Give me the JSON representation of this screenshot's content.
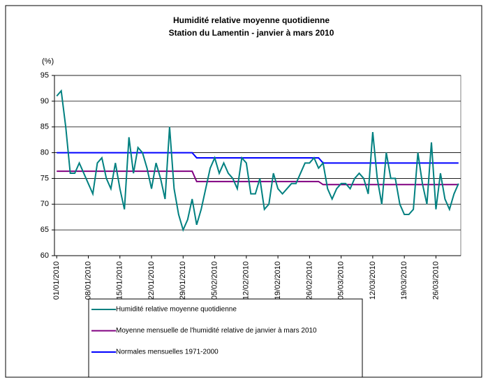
{
  "chart_data": {
    "type": "line",
    "title": "Humidité relative moyenne quotidienne",
    "subtitle": "Station du Lamentin - janvier à mars 2010",
    "y_label": "(%)",
    "ylim": [
      60,
      95
    ],
    "yticks": [
      60,
      65,
      70,
      75,
      80,
      85,
      90,
      95
    ],
    "grid": true,
    "categories": [
      "01/01/2010",
      null,
      null,
      null,
      null,
      null,
      null,
      "08/01/2010",
      null,
      null,
      null,
      null,
      null,
      null,
      "15/01/2010",
      null,
      null,
      null,
      null,
      null,
      null,
      "22/01/2010",
      null,
      null,
      null,
      null,
      null,
      null,
      "29/01/2010",
      null,
      null,
      null,
      null,
      null,
      null,
      "05/02/2010",
      null,
      null,
      null,
      null,
      null,
      null,
      "12/02/2010",
      null,
      null,
      null,
      null,
      null,
      null,
      "19/02/2010",
      null,
      null,
      null,
      null,
      null,
      null,
      "26/02/2010",
      null,
      null,
      null,
      null,
      null,
      null,
      "05/03/2010",
      null,
      null,
      null,
      null,
      null,
      null,
      "12/03/2010",
      null,
      null,
      null,
      null,
      null,
      null,
      "19/03/2010",
      null,
      null,
      null,
      null,
      null,
      null,
      "26/03/2010",
      null,
      null,
      null,
      null,
      null
    ],
    "series": [
      {
        "name": "Humidité relative moyenne quotidienne",
        "color": "#008080",
        "values": [
          91,
          92,
          85,
          76,
          76,
          78,
          76,
          74,
          72,
          78,
          79,
          75,
          73,
          78,
          73,
          69,
          83,
          76,
          81,
          80,
          77,
          73,
          78,
          75,
          71,
          85,
          73,
          68,
          65,
          67,
          71,
          66,
          69,
          73,
          77,
          79,
          76,
          78,
          76,
          75,
          73,
          79,
          78,
          72,
          72,
          75,
          69,
          70,
          76,
          73,
          72,
          73,
          74,
          74,
          76,
          78,
          78,
          79,
          77,
          78,
          73,
          71,
          73,
          74,
          74,
          73,
          75,
          76,
          75,
          72,
          84,
          75,
          70,
          80,
          75,
          75,
          70,
          68,
          68,
          69,
          80,
          74,
          70,
          82,
          69,
          76,
          71,
          69,
          72,
          74
        ]
      },
      {
        "name": "Moyenne mensuelle de l'humidité relative de janvier à mars 2010",
        "color": "#800080",
        "values": [
          76.4,
          76.4,
          76.4,
          76.4,
          76.4,
          76.4,
          76.4,
          76.4,
          76.4,
          76.4,
          76.4,
          76.4,
          76.4,
          76.4,
          76.4,
          76.4,
          76.4,
          76.4,
          76.4,
          76.4,
          76.4,
          76.4,
          76.4,
          76.4,
          76.4,
          76.4,
          76.4,
          76.4,
          76.4,
          76.4,
          76.4,
          74.4,
          74.4,
          74.4,
          74.4,
          74.4,
          74.4,
          74.4,
          74.4,
          74.4,
          74.4,
          74.4,
          74.4,
          74.4,
          74.4,
          74.4,
          74.4,
          74.4,
          74.4,
          74.4,
          74.4,
          74.4,
          74.4,
          74.4,
          74.4,
          74.4,
          74.4,
          74.4,
          74.4,
          73.8,
          73.8,
          73.8,
          73.8,
          73.8,
          73.8,
          73.8,
          73.8,
          73.8,
          73.8,
          73.8,
          73.8,
          73.8,
          73.8,
          73.8,
          73.8,
          73.8,
          73.8,
          73.8,
          73.8,
          73.8,
          73.8,
          73.8,
          73.8,
          73.8,
          73.8,
          73.8,
          73.8,
          73.8,
          73.8,
          73.8
        ]
      },
      {
        "name": "Normales mensuelles 1971-2000",
        "color": "#0000ff",
        "values": [
          80,
          80,
          80,
          80,
          80,
          80,
          80,
          80,
          80,
          80,
          80,
          80,
          80,
          80,
          80,
          80,
          80,
          80,
          80,
          80,
          80,
          80,
          80,
          80,
          80,
          80,
          80,
          80,
          80,
          80,
          80,
          79,
          79,
          79,
          79,
          79,
          79,
          79,
          79,
          79,
          79,
          79,
          79,
          79,
          79,
          79,
          79,
          79,
          79,
          79,
          79,
          79,
          79,
          79,
          79,
          79,
          79,
          79,
          79,
          78,
          78,
          78,
          78,
          78,
          78,
          78,
          78,
          78,
          78,
          78,
          78,
          78,
          78,
          78,
          78,
          78,
          78,
          78,
          78,
          78,
          78,
          78,
          78,
          78,
          78,
          78,
          78,
          78,
          78,
          78
        ]
      }
    ]
  }
}
